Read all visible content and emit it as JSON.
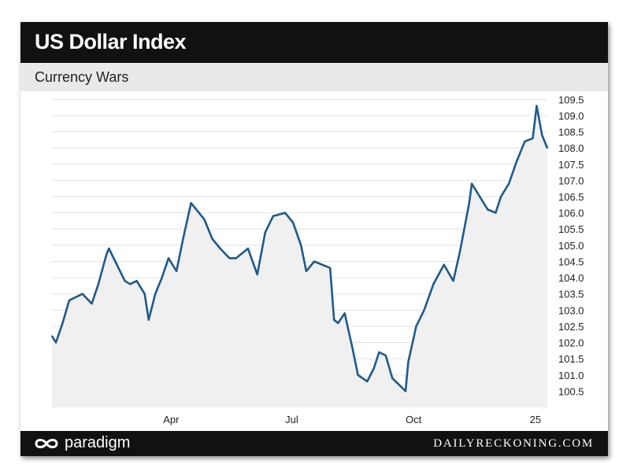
{
  "header": {
    "title": "US Dollar Index",
    "subtitle": "Currency Wars"
  },
  "footer": {
    "brand": "paradigm",
    "site": "DAILYRECKONING.COM"
  },
  "colors": {
    "line": "#1f5a8a",
    "area": "#f0f0f0",
    "header_bg": "#111111",
    "subheader_bg": "#e9e9e9"
  },
  "chart_data": {
    "type": "line",
    "title": "US Dollar Index",
    "subtitle": "Currency Wars",
    "x_tick_labels": [
      "Apr",
      "Jul",
      "Oct",
      "25"
    ],
    "y_ticks": [
      100.5,
      101.0,
      101.5,
      102.0,
      102.5,
      103.0,
      103.5,
      104.0,
      104.5,
      105.0,
      105.5,
      106.0,
      106.5,
      107.0,
      107.5,
      108.0,
      108.5,
      109.0,
      109.5
    ],
    "y_tick_labels": [
      "100.5",
      "101.0",
      "101.5",
      "102.0",
      "102.5",
      "103.0",
      "103.5",
      "104.0",
      "104.5",
      "105.0",
      "105.5",
      "106.0",
      "106.5",
      "107.0",
      "107.5",
      "108.0",
      "108.5",
      "109.0",
      "109.5"
    ],
    "ylim": [
      100.0,
      109.75
    ],
    "xlim": [
      "2024-01-02",
      "2025-01-10"
    ],
    "grid": true,
    "series": [
      {
        "x": [
          "2024-01-02",
          "2024-01-05",
          "2024-01-10",
          "2024-01-15",
          "2024-01-20",
          "2024-01-25",
          "2024-02-01",
          "2024-02-06",
          "2024-02-12",
          "2024-02-14",
          "2024-02-20",
          "2024-02-26",
          "2024-03-01",
          "2024-03-06",
          "2024-03-12",
          "2024-03-15",
          "2024-03-20",
          "2024-03-25",
          "2024-03-30",
          "2024-04-05",
          "2024-04-10",
          "2024-04-16",
          "2024-04-22",
          "2024-04-26",
          "2024-05-02",
          "2024-05-08",
          "2024-05-15",
          "2024-05-20",
          "2024-05-29",
          "2024-06-05",
          "2024-06-11",
          "2024-06-17",
          "2024-06-26",
          "2024-07-02",
          "2024-07-08",
          "2024-07-12",
          "2024-07-18",
          "2024-07-24",
          "2024-07-30",
          "2024-08-02",
          "2024-08-05",
          "2024-08-10",
          "2024-08-16",
          "2024-08-20",
          "2024-08-27",
          "2024-09-01",
          "2024-09-05",
          "2024-09-10",
          "2024-09-15",
          "2024-09-20",
          "2024-09-25",
          "2024-09-27",
          "2024-10-03",
          "2024-10-09",
          "2024-10-16",
          "2024-10-24",
          "2024-10-31",
          "2024-11-05",
          "2024-11-12",
          "2024-11-14",
          "2024-11-20",
          "2024-11-26",
          "2024-12-02",
          "2024-12-06",
          "2024-12-12",
          "2024-12-18",
          "2024-12-24",
          "2024-12-30",
          "2025-01-02",
          "2025-01-06",
          "2025-01-10"
        ],
        "values": [
          102.2,
          102.0,
          102.6,
          103.3,
          103.4,
          103.5,
          103.2,
          103.8,
          104.7,
          104.9,
          104.4,
          103.9,
          103.8,
          103.9,
          103.5,
          102.7,
          103.5,
          104.0,
          104.6,
          104.2,
          105.2,
          106.3,
          106.0,
          105.8,
          105.2,
          104.9,
          104.6,
          104.6,
          104.9,
          104.1,
          105.4,
          105.9,
          106.0,
          105.7,
          105.0,
          104.2,
          104.5,
          104.4,
          104.3,
          102.7,
          102.6,
          102.9,
          101.8,
          101.0,
          100.8,
          101.2,
          101.7,
          101.6,
          100.9,
          100.7,
          100.5,
          101.4,
          102.5,
          103.0,
          103.8,
          104.4,
          103.9,
          104.8,
          106.3,
          106.9,
          106.5,
          106.1,
          106.0,
          106.5,
          106.9,
          107.6,
          108.2,
          108.3,
          109.3,
          108.4,
          108.0
        ]
      }
    ]
  }
}
